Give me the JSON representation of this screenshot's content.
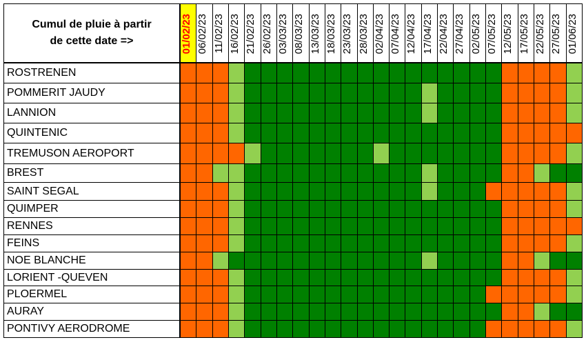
{
  "header": {
    "title_lines": [
      "Cumul de pluie à partir",
      "de cette date =>"
    ]
  },
  "columns": [
    "01/02/23",
    "06/02/23",
    "11/02/23",
    "16/02/23",
    "21/02/23",
    "26/02/23",
    "03/03/23",
    "08/03/23",
    "13/03/23",
    "18/03/23",
    "23/03/23",
    "28/03/23",
    "02/04/23",
    "07/04/23",
    "12/04/23",
    "17/04/23",
    "22/04/23",
    "27/04/23",
    "02/05/23",
    "07/05/23",
    "12/05/23",
    "17/05/23",
    "22/05/23",
    "27/05/23",
    "01/06/23"
  ],
  "highlight": {
    "column": 0,
    "background": "#ffff00",
    "color": "#ff0000"
  },
  "palette": {
    "orange": "#ff6600",
    "light": "#92d050",
    "dark": "#008000"
  },
  "rows": [
    {
      "station": "ROSTRENEN",
      "cells": [
        "orange",
        "orange",
        "orange",
        "light",
        "dark",
        "dark",
        "dark",
        "dark",
        "dark",
        "dark",
        "dark",
        "dark",
        "dark",
        "dark",
        "dark",
        "dark",
        "dark",
        "dark",
        "dark",
        "dark",
        "orange",
        "orange",
        "orange",
        "orange",
        "light"
      ]
    },
    {
      "station": "POMMERIT JAUDY",
      "cells": [
        "orange",
        "orange",
        "orange",
        "light",
        "dark",
        "dark",
        "dark",
        "dark",
        "dark",
        "dark",
        "dark",
        "dark",
        "dark",
        "dark",
        "dark",
        "light",
        "dark",
        "dark",
        "dark",
        "dark",
        "orange",
        "orange",
        "orange",
        "orange",
        "light"
      ]
    },
    {
      "station": "LANNION",
      "cells": [
        "orange",
        "orange",
        "orange",
        "light",
        "dark",
        "dark",
        "dark",
        "dark",
        "dark",
        "dark",
        "dark",
        "dark",
        "dark",
        "dark",
        "dark",
        "light",
        "dark",
        "dark",
        "dark",
        "dark",
        "orange",
        "orange",
        "orange",
        "orange",
        "light"
      ]
    },
    {
      "station": "QUINTENIC",
      "cells": [
        "orange",
        "orange",
        "orange",
        "light",
        "dark",
        "dark",
        "dark",
        "dark",
        "dark",
        "dark",
        "dark",
        "dark",
        "dark",
        "dark",
        "dark",
        "dark",
        "dark",
        "dark",
        "dark",
        "dark",
        "orange",
        "orange",
        "orange",
        "orange",
        "orange"
      ]
    },
    {
      "station": "TREMUSON AEROPORT",
      "cells": [
        "orange",
        "orange",
        "orange",
        "orange",
        "light",
        "dark",
        "dark",
        "dark",
        "dark",
        "dark",
        "dark",
        "dark",
        "light",
        "dark",
        "dark",
        "dark",
        "dark",
        "dark",
        "dark",
        "dark",
        "orange",
        "orange",
        "orange",
        "orange",
        "light"
      ]
    },
    {
      "station": "BREST",
      "cells": [
        "orange",
        "orange",
        "light",
        "light",
        "dark",
        "dark",
        "dark",
        "dark",
        "dark",
        "dark",
        "dark",
        "dark",
        "dark",
        "dark",
        "dark",
        "light",
        "dark",
        "dark",
        "dark",
        "dark",
        "orange",
        "orange",
        "light",
        "dark",
        "dark"
      ]
    },
    {
      "station": "SAINT SEGAL",
      "cells": [
        "orange",
        "orange",
        "orange",
        "light",
        "dark",
        "dark",
        "dark",
        "dark",
        "dark",
        "dark",
        "dark",
        "dark",
        "dark",
        "dark",
        "dark",
        "light",
        "dark",
        "dark",
        "dark",
        "orange",
        "orange",
        "orange",
        "orange",
        "orange",
        "light"
      ]
    },
    {
      "station": "QUIMPER",
      "cells": [
        "orange",
        "orange",
        "orange",
        "light",
        "dark",
        "dark",
        "dark",
        "dark",
        "dark",
        "dark",
        "dark",
        "dark",
        "dark",
        "dark",
        "dark",
        "dark",
        "dark",
        "dark",
        "dark",
        "dark",
        "orange",
        "orange",
        "orange",
        "orange",
        "light"
      ]
    },
    {
      "station": "RENNES",
      "cells": [
        "orange",
        "orange",
        "orange",
        "light",
        "dark",
        "dark",
        "dark",
        "dark",
        "dark",
        "dark",
        "dark",
        "dark",
        "dark",
        "dark",
        "dark",
        "dark",
        "dark",
        "dark",
        "dark",
        "dark",
        "orange",
        "orange",
        "orange",
        "orange",
        "orange"
      ]
    },
    {
      "station": "FEINS",
      "cells": [
        "orange",
        "orange",
        "orange",
        "light",
        "dark",
        "dark",
        "dark",
        "dark",
        "dark",
        "dark",
        "dark",
        "dark",
        "dark",
        "dark",
        "dark",
        "dark",
        "dark",
        "dark",
        "dark",
        "dark",
        "orange",
        "orange",
        "orange",
        "orange",
        "light"
      ]
    },
    {
      "station": "NOE BLANCHE",
      "cells": [
        "orange",
        "orange",
        "light",
        "dark",
        "dark",
        "dark",
        "dark",
        "dark",
        "dark",
        "dark",
        "dark",
        "dark",
        "dark",
        "dark",
        "dark",
        "light",
        "dark",
        "dark",
        "dark",
        "dark",
        "orange",
        "orange",
        "light",
        "dark",
        "dark"
      ]
    },
    {
      "station": "LORIENT -QUEVEN",
      "cells": [
        "orange",
        "orange",
        "orange",
        "light",
        "dark",
        "dark",
        "dark",
        "dark",
        "dark",
        "dark",
        "dark",
        "dark",
        "dark",
        "dark",
        "dark",
        "dark",
        "dark",
        "dark",
        "dark",
        "dark",
        "orange",
        "orange",
        "orange",
        "orange",
        "light"
      ]
    },
    {
      "station": "PLOERMEL",
      "cells": [
        "orange",
        "orange",
        "orange",
        "light",
        "dark",
        "dark",
        "dark",
        "dark",
        "dark",
        "dark",
        "dark",
        "dark",
        "dark",
        "dark",
        "dark",
        "dark",
        "dark",
        "dark",
        "dark",
        "orange",
        "orange",
        "orange",
        "orange",
        "orange",
        "light"
      ]
    },
    {
      "station": "AURAY",
      "cells": [
        "orange",
        "orange",
        "orange",
        "light",
        "dark",
        "dark",
        "dark",
        "dark",
        "dark",
        "dark",
        "dark",
        "dark",
        "dark",
        "dark",
        "dark",
        "dark",
        "dark",
        "dark",
        "dark",
        "dark",
        "orange",
        "orange",
        "light",
        "dark",
        "dark"
      ]
    },
    {
      "station": "PONTIVY AERODROME",
      "cells": [
        "orange",
        "orange",
        "orange",
        "light",
        "dark",
        "dark",
        "dark",
        "dark",
        "dark",
        "dark",
        "dark",
        "dark",
        "dark",
        "dark",
        "dark",
        "dark",
        "dark",
        "dark",
        "dark",
        "orange",
        "orange",
        "orange",
        "orange",
        "orange",
        "light"
      ]
    }
  ]
}
